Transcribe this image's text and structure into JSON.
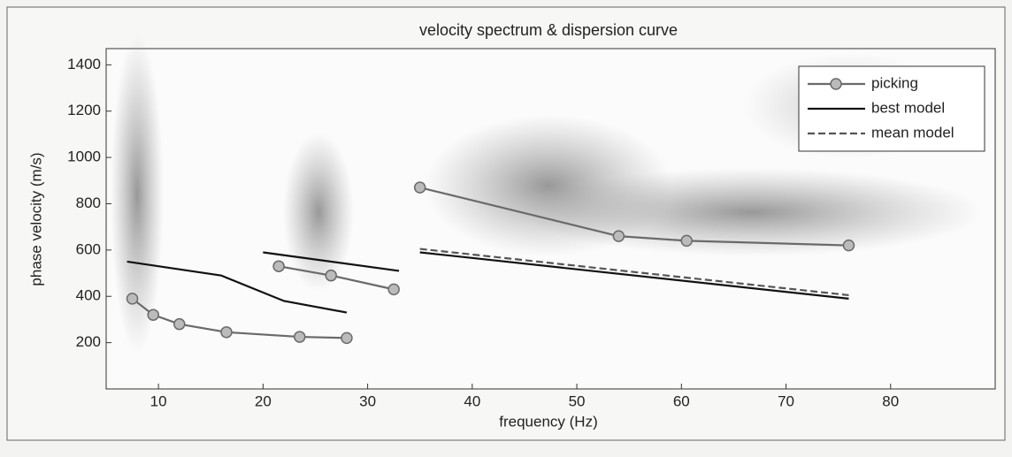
{
  "chart_data": {
    "type": "line",
    "title": "velocity spectrum & dispersion curve",
    "x_label": "frequency (Hz)",
    "y_label": "phase velocity (m/s)",
    "xlim": [
      5,
      90
    ],
    "xticks": [
      10,
      20,
      30,
      40,
      50,
      60,
      70,
      80
    ],
    "ylim": [
      0,
      1470
    ],
    "yticks": [
      200,
      400,
      600,
      800,
      1000,
      1200,
      1400
    ],
    "grid": false,
    "legend": "upper right",
    "series": [
      {
        "name": "picking",
        "color": "#6a6a6a",
        "marker": "circle",
        "dash": "solid",
        "x": [
          7.5,
          9.5,
          12,
          16.5,
          23.5,
          28,
          null,
          21.5,
          26.5,
          32.5,
          null,
          35,
          54,
          60.5,
          76
        ],
        "values": [
          390,
          320,
          280,
          245,
          225,
          220,
          null,
          530,
          490,
          430,
          null,
          870,
          660,
          640,
          620
        ]
      },
      {
        "name": "best model",
        "color": "#111111",
        "marker": "none",
        "dash": "solid",
        "x": [
          7,
          16,
          22,
          28,
          null,
          20,
          33,
          null,
          35,
          76
        ],
        "values": [
          550,
          490,
          380,
          330,
          null,
          590,
          510,
          null,
          590,
          390
        ]
      },
      {
        "name": "mean model",
        "color": "#555555",
        "marker": "none",
        "dash": "dashed",
        "x": [
          35,
          76
        ],
        "values": [
          605,
          405
        ]
      }
    ]
  }
}
